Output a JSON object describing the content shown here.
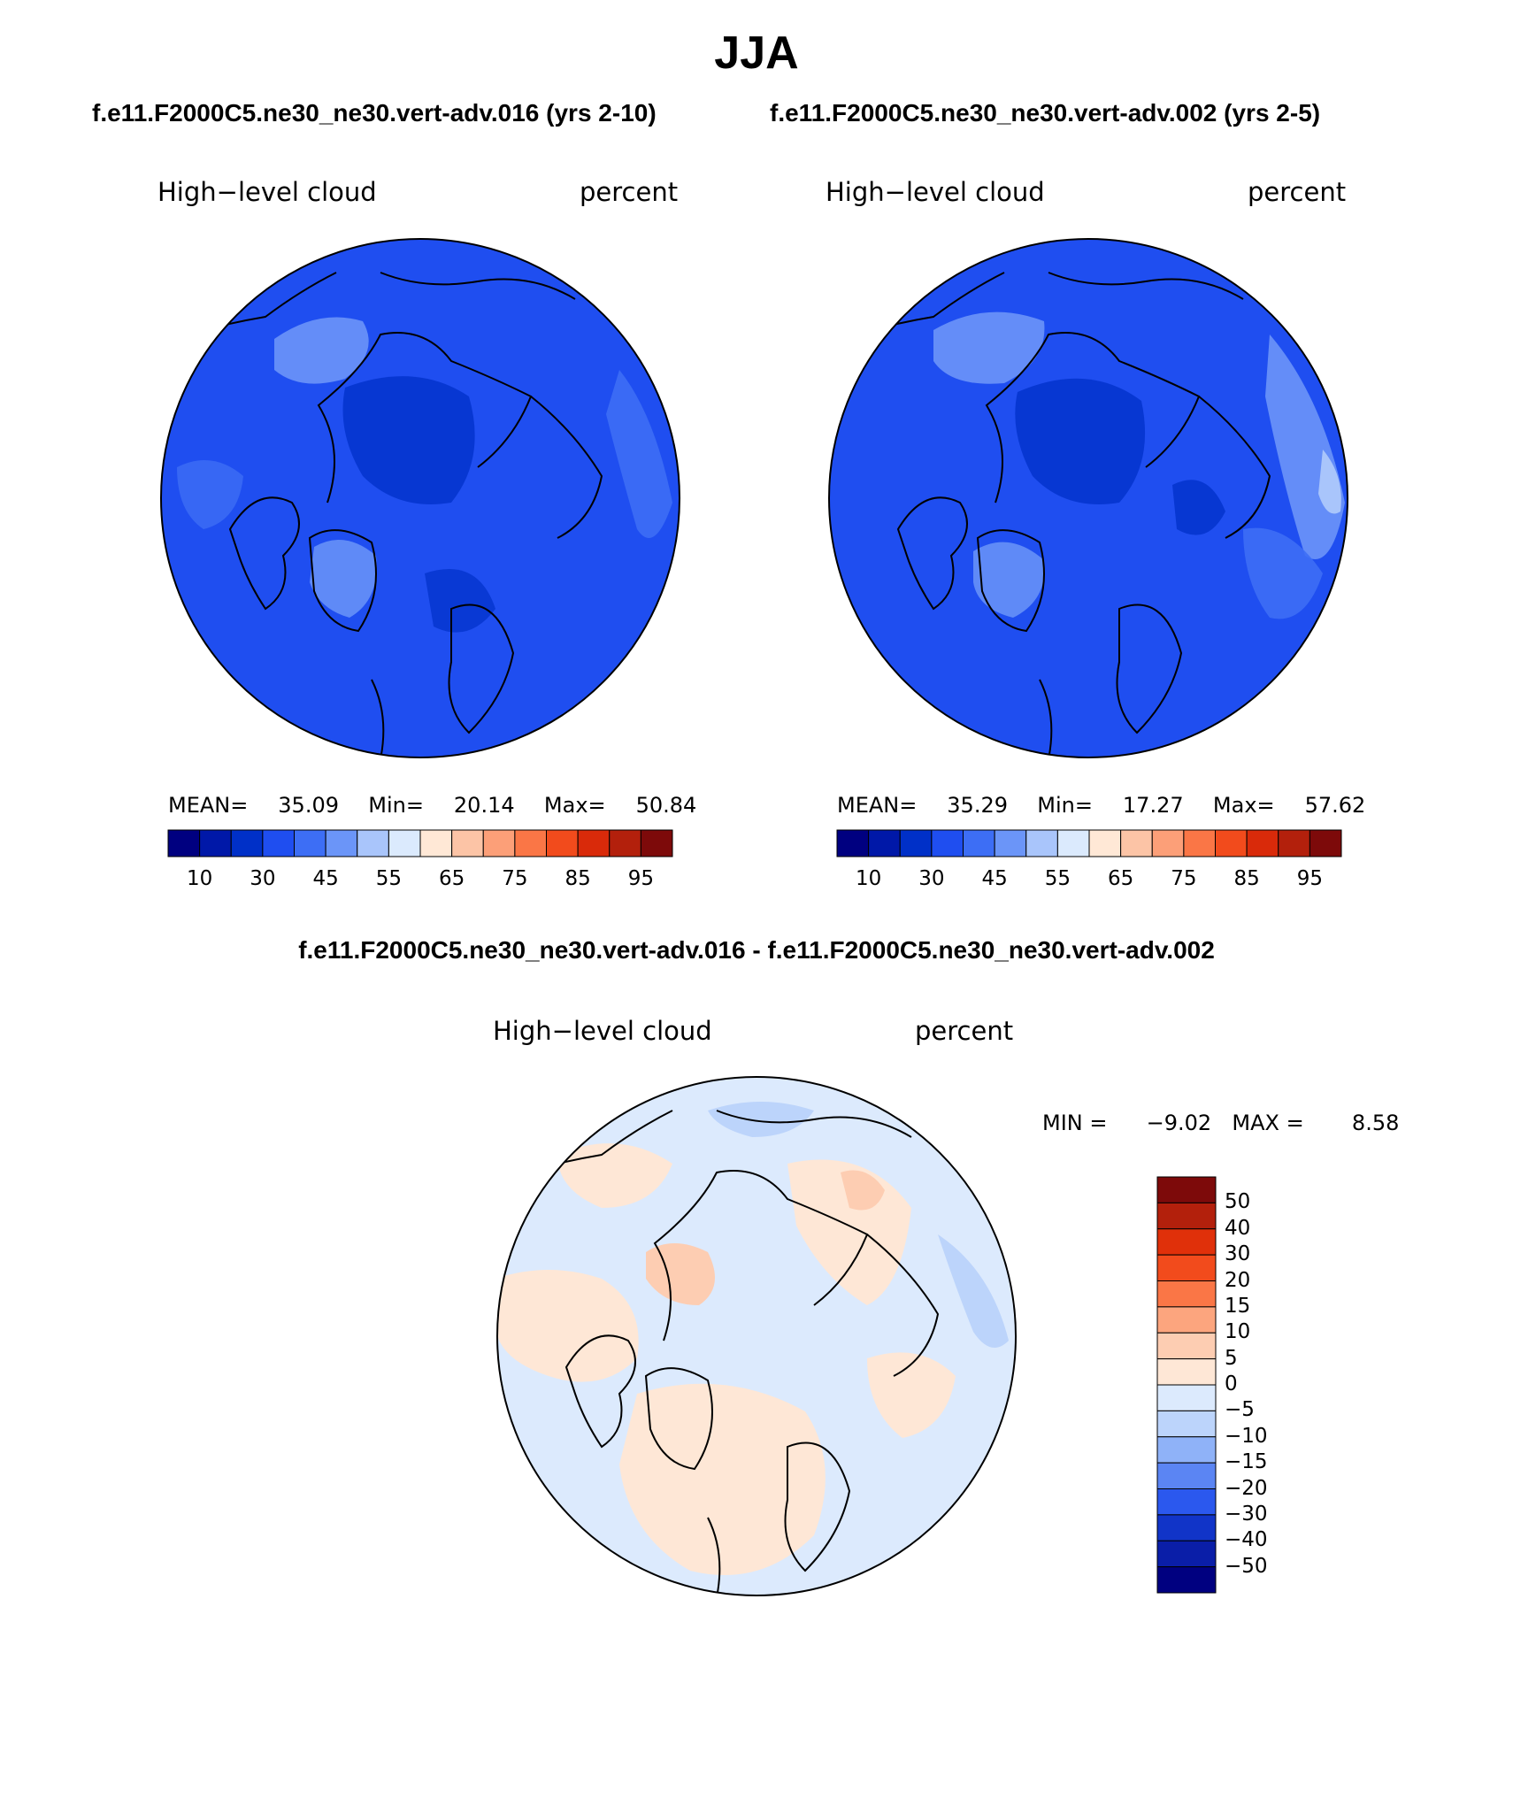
{
  "title": "JJA",
  "panels": [
    {
      "id": "left",
      "case": "f.e11.F2000C5.ne30_ne30.vert-adv.016 (yrs 2-10)",
      "variable": "High−level cloud",
      "units": "percent",
      "stats": {
        "mean_label": "MEAN=",
        "mean": "35.09",
        "min_label": "Min=",
        "min": "20.14",
        "max_label": "Max=",
        "max": "50.84"
      }
    },
    {
      "id": "right",
      "case": "f.e11.F2000C5.ne30_ne30.vert-adv.002 (yrs 2-5)",
      "variable": "High−level cloud",
      "units": "percent",
      "stats": {
        "mean_label": "MEAN=",
        "mean": "35.29",
        "min_label": "Min=",
        "min": "17.27",
        "max_label": "Max=",
        "max": "57.62"
      }
    }
  ],
  "colorbar_abs": {
    "colors": [
      "#000080",
      "#0018a8",
      "#0030c8",
      "#1f4ef0",
      "#3d6ef5",
      "#6b95f8",
      "#a9c5fb",
      "#dbeafd",
      "#ffe8d6",
      "#fcc4a6",
      "#fc9f78",
      "#fa7646",
      "#f24b1c",
      "#d92a0a",
      "#b3200c",
      "#7d0a0a"
    ],
    "tick_labels": [
      "10",
      "30",
      "45",
      "55",
      "65",
      "75",
      "85",
      "95"
    ]
  },
  "difference": {
    "title": "f.e11.F2000C5.ne30_ne30.vert-adv.016 - f.e11.F2000C5.ne30_ne30.vert-adv.002",
    "variable": "High−level cloud",
    "units": "percent",
    "min_label": "MIN =",
    "min": "−9.02",
    "max_label": "MAX =",
    "max": "8.58"
  },
  "colorbar_diff": {
    "colors_top_to_bottom": [
      "#7d0a0a",
      "#b3200c",
      "#e0300a",
      "#f24b1c",
      "#fa7646",
      "#fca57e",
      "#fdcdb2",
      "#fee7d6",
      "#dceafd",
      "#bcd4fb",
      "#8fb2f8",
      "#5b85f3",
      "#2b58ee",
      "#1134c8",
      "#0a1ea8",
      "#000080"
    ],
    "tick_labels": [
      "50",
      "40",
      "30",
      "20",
      "15",
      "10",
      "5",
      "0",
      "−5",
      "−10",
      "−15",
      "−20",
      "−30",
      "−40",
      "−50"
    ]
  },
  "map_fill": {
    "left_base": "#1f4ef0",
    "right_base": "#1f4ef0",
    "diff_base": "#dceafd"
  }
}
